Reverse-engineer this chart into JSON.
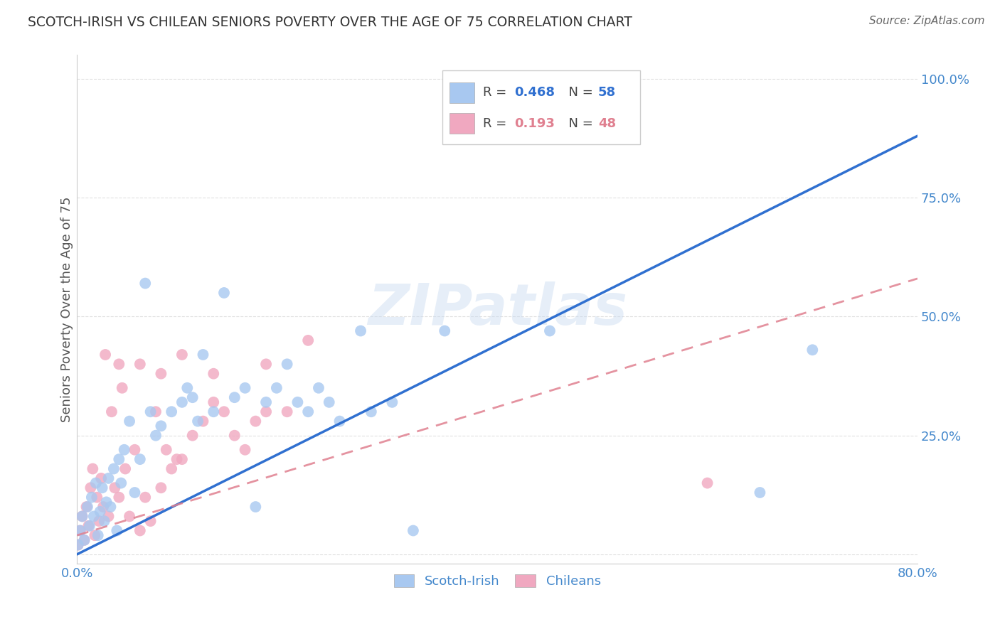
{
  "title": "SCOTCH-IRISH VS CHILEAN SENIORS POVERTY OVER THE AGE OF 75 CORRELATION CHART",
  "source": "Source: ZipAtlas.com",
  "ylabel": "Seniors Poverty Over the Age of 75",
  "xlim": [
    0.0,
    0.8
  ],
  "ylim": [
    -0.02,
    1.05
  ],
  "scotch_irish_R": 0.468,
  "scotch_irish_N": 58,
  "chilean_R": 0.193,
  "chilean_N": 48,
  "scotch_irish_color": "#a8c8f0",
  "chilean_color": "#f0a8c0",
  "scotch_irish_line_color": "#3070d0",
  "chilean_line_color": "#e08090",
  "watermark": "ZIPatlas",
  "background_color": "#ffffff",
  "grid_color": "#cccccc",
  "tick_color": "#4488cc",
  "title_color": "#333333",
  "axis_label_color": "#555555",
  "si_line_y0": 0.0,
  "si_line_y1": 0.88,
  "ch_line_y0": 0.04,
  "ch_line_y1": 0.58
}
